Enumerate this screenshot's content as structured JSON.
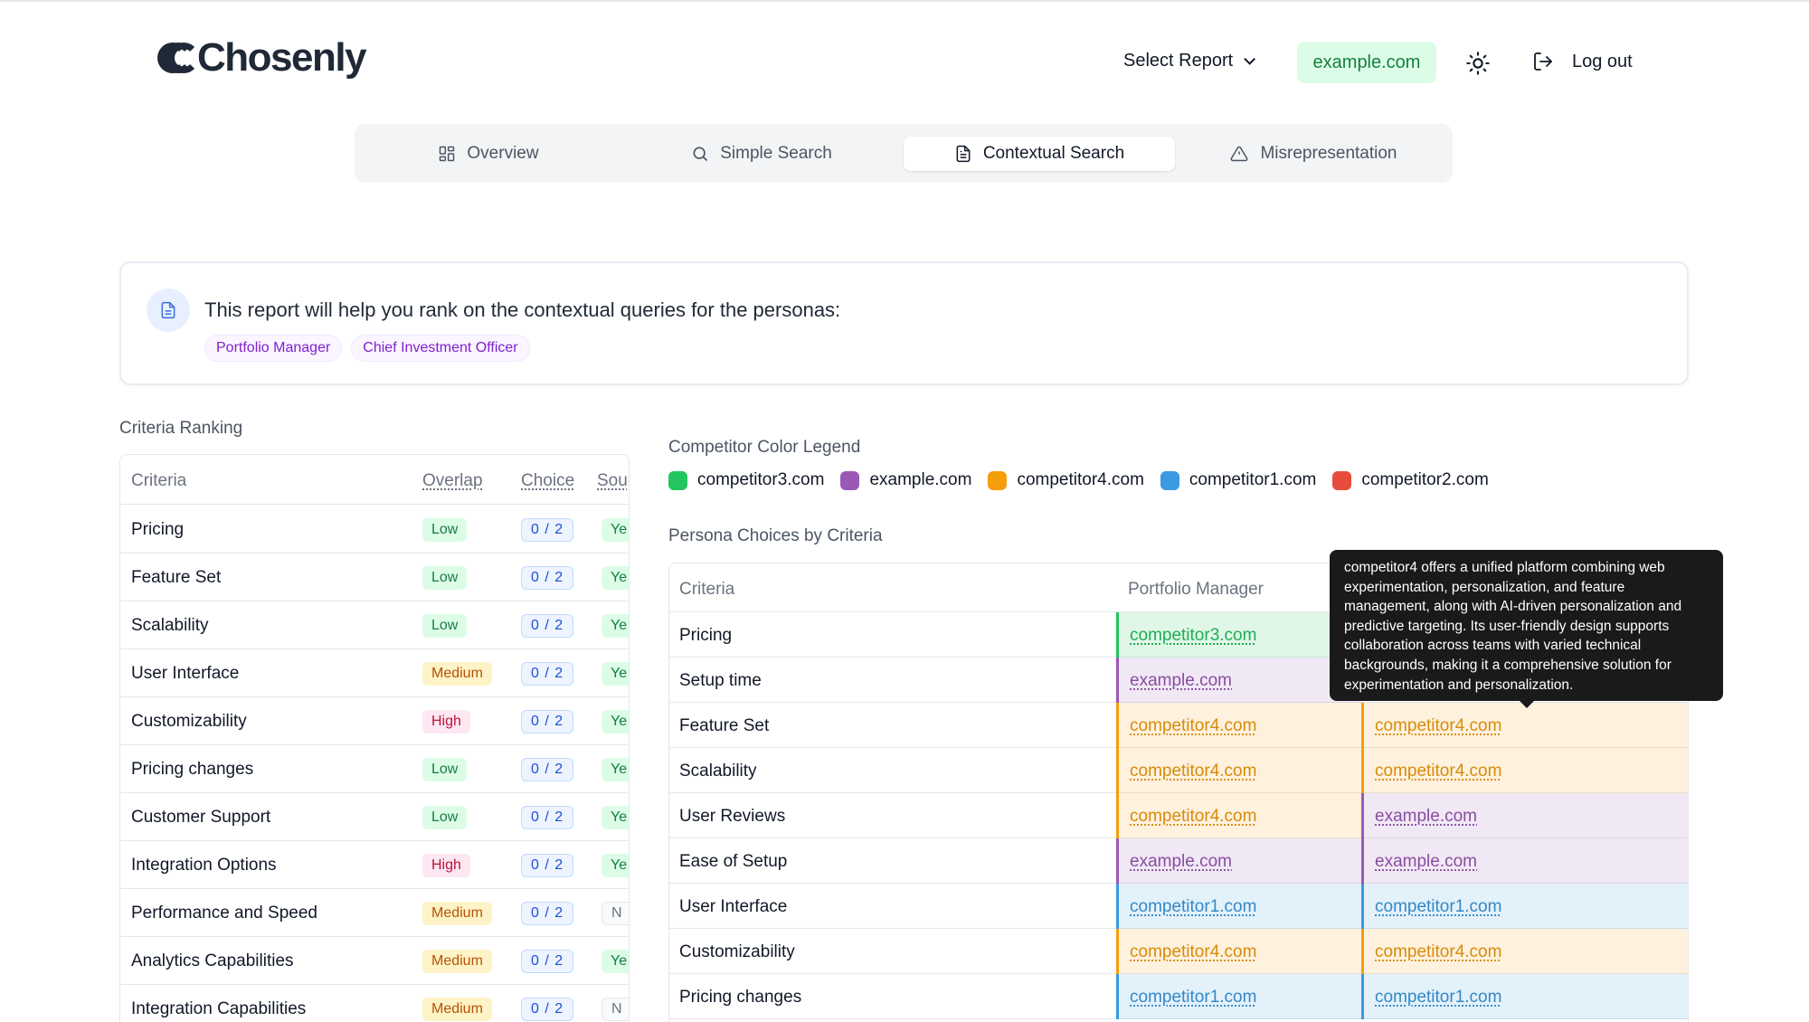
{
  "app": {
    "logo": "Chosenly"
  },
  "header": {
    "select_report": "Select Report",
    "domain": "example.com",
    "logout": "Log out",
    "theme_icon": "sun-icon"
  },
  "tabs": [
    {
      "label": "Overview",
      "icon": "grid-icon"
    },
    {
      "label": "Simple Search",
      "icon": "search-icon"
    },
    {
      "label": "Contextual Search",
      "icon": "document-icon",
      "active": true
    },
    {
      "label": "Misrepresentation",
      "icon": "warning-icon"
    }
  ],
  "info": {
    "text": "This report will help you rank on the contextual queries for the personas:",
    "personas": [
      "Portfolio Manager",
      "Chief Investment Officer"
    ]
  },
  "criteria_ranking": {
    "title": "Criteria Ranking",
    "columns": [
      "Criteria",
      "Overlap",
      "Choice",
      "Sou"
    ],
    "rows": [
      {
        "name": "Pricing",
        "overlap": "Low",
        "choice": "0 / 2",
        "source": "Ye"
      },
      {
        "name": "Feature Set",
        "overlap": "Low",
        "choice": "0 / 2",
        "source": "Ye"
      },
      {
        "name": "Scalability",
        "overlap": "Low",
        "choice": "0 / 2",
        "source": "Ye"
      },
      {
        "name": "User Interface",
        "overlap": "Medium",
        "choice": "0 / 2",
        "source": "Ye"
      },
      {
        "name": "Customizability",
        "overlap": "High",
        "choice": "0 / 2",
        "source": "Ye"
      },
      {
        "name": "Pricing changes",
        "overlap": "Low",
        "choice": "0 / 2",
        "source": "Ye"
      },
      {
        "name": "Customer Support",
        "overlap": "Low",
        "choice": "0 / 2",
        "source": "Ye"
      },
      {
        "name": "Integration Options",
        "overlap": "High",
        "choice": "0 / 2",
        "source": "Ye"
      },
      {
        "name": "Performance and Speed",
        "overlap": "Medium",
        "choice": "0 / 2",
        "source": "N"
      },
      {
        "name": "Analytics Capabilities",
        "overlap": "Medium",
        "choice": "0 / 2",
        "source": "Ye"
      },
      {
        "name": "Integration Capabilities",
        "overlap": "Medium",
        "choice": "0 / 2",
        "source": "N"
      }
    ]
  },
  "legend": {
    "title": "Competitor Color Legend",
    "items": [
      {
        "name": "competitor3.com",
        "color": "#22c55e"
      },
      {
        "name": "example.com",
        "color": "#9b59b6"
      },
      {
        "name": "competitor4.com",
        "color": "#f59e0b"
      },
      {
        "name": "competitor1.com",
        "color": "#3b9ae1"
      },
      {
        "name": "competitor2.com",
        "color": "#e74c3c"
      }
    ]
  },
  "persona_choices": {
    "title": "Persona Choices by Criteria",
    "columns": [
      "Criteria",
      "Portfolio Manager"
    ],
    "rows": [
      {
        "name": "Pricing",
        "c1": "competitor3.com",
        "c2": ""
      },
      {
        "name": "Setup time",
        "c1": "example.com",
        "c2": ""
      },
      {
        "name": "Feature Set",
        "c1": "competitor4.com",
        "c2": "competitor4.com"
      },
      {
        "name": "Scalability",
        "c1": "competitor4.com",
        "c2": "competitor4.com"
      },
      {
        "name": "User Reviews",
        "c1": "competitor4.com",
        "c2": "example.com"
      },
      {
        "name": "Ease of Setup",
        "c1": "example.com",
        "c2": "example.com"
      },
      {
        "name": "User Interface",
        "c1": "competitor1.com",
        "c2": "competitor1.com"
      },
      {
        "name": "Customizability",
        "c1": "competitor4.com",
        "c2": "competitor4.com"
      },
      {
        "name": "Pricing changes",
        "c1": "competitor1.com",
        "c2": "competitor1.com"
      }
    ]
  },
  "tooltip": {
    "text": "competitor4 offers a unified platform combining web experimentation, personalization, and feature management, along with AI-driven personalization and predictive targeting. Its user-friendly design supports collaboration across teams with varied technical backgrounds, making it a comprehensive solution for experimentation and personalization."
  }
}
